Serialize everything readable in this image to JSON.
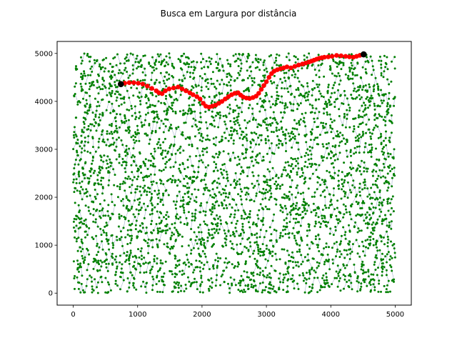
{
  "chart_data": {
    "type": "scatter",
    "title": "Busca em Largura por distância",
    "xlabel": "",
    "ylabel": "",
    "xlim": [
      -250,
      5250
    ],
    "ylim": [
      -250,
      5250
    ],
    "x_ticks": [
      0,
      1000,
      2000,
      3000,
      4000,
      5000
    ],
    "y_ticks": [
      0,
      1000,
      2000,
      3000,
      4000,
      5000
    ],
    "x_tick_labels": [
      "0",
      "1000",
      "2000",
      "3000",
      "4000",
      "5000"
    ],
    "y_tick_labels": [
      "0",
      "1000",
      "2000",
      "3000",
      "4000",
      "5000"
    ],
    "grid": false,
    "legend": "none",
    "colors": {
      "nodes": "#008000",
      "edges": "#5a78a8",
      "path": "#ff0000",
      "endpoints": "#000000"
    },
    "background_nodes": {
      "count": 4000,
      "x_range": [
        0,
        5000
      ],
      "y_range": [
        0,
        5000
      ],
      "distribution": "uniform-random"
    },
    "path": {
      "x": [
        740,
        800,
        870,
        940,
        1010,
        1080,
        1150,
        1220,
        1290,
        1330,
        1380,
        1430,
        1490,
        1560,
        1630,
        1690,
        1750,
        1810,
        1860,
        1920,
        1970,
        2020,
        2060,
        2110,
        2160,
        2210,
        2260,
        2310,
        2360,
        2410,
        2460,
        2510,
        2560,
        2600,
        2640,
        2690,
        2740,
        2790,
        2840,
        2880,
        2920,
        2960,
        3000,
        3040,
        3080,
        3120,
        3170,
        3220,
        3270,
        3320,
        3380,
        3440,
        3500,
        3560,
        3610,
        3660,
        3700,
        3740,
        3780,
        3820,
        3860,
        3900,
        3960,
        4020,
        4090,
        4160,
        4230,
        4290,
        4350,
        4400,
        4450,
        4510
      ],
      "y": [
        4360,
        4380,
        4390,
        4390,
        4380,
        4360,
        4320,
        4270,
        4220,
        4180,
        4160,
        4220,
        4260,
        4280,
        4300,
        4260,
        4220,
        4180,
        4140,
        4100,
        4050,
        3960,
        3900,
        3880,
        3900,
        3920,
        3960,
        4000,
        4050,
        4100,
        4140,
        4170,
        4180,
        4130,
        4090,
        4070,
        4060,
        4080,
        4110,
        4170,
        4250,
        4330,
        4410,
        4500,
        4580,
        4630,
        4660,
        4680,
        4700,
        4720,
        4700,
        4730,
        4760,
        4780,
        4800,
        4820,
        4840,
        4860,
        4880,
        4900,
        4910,
        4920,
        4930,
        4940,
        4960,
        4950,
        4940,
        4930,
        4920,
        4940,
        4960,
        4980
      ]
    },
    "endpoints": {
      "x": [
        740,
        4510
      ],
      "y": [
        4360,
        4980
      ]
    }
  }
}
